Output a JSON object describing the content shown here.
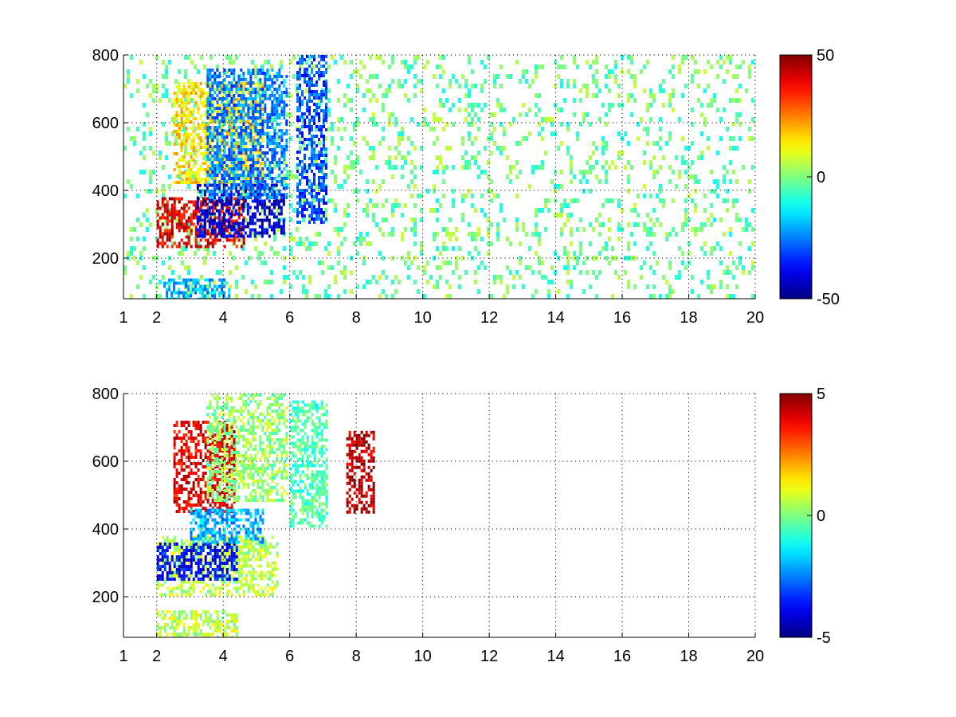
{
  "chart_data": [
    {
      "type": "heatmap",
      "title": "",
      "xlabel": "",
      "ylabel": "",
      "xlim": [
        1,
        20
      ],
      "ylim": [
        80,
        800
      ],
      "x_ticks": [
        1,
        2,
        4,
        6,
        8,
        10,
        12,
        14,
        16,
        18,
        20
      ],
      "y_ticks": [
        200,
        400,
        600,
        800
      ],
      "grid": true,
      "colorbar": {
        "colormap": "jet",
        "min": -50,
        "max": 50,
        "ticks": [
          50,
          0,
          -50
        ]
      },
      "features": [
        {
          "x": [
            2.0,
            4.6
          ],
          "y": [
            230,
            380
          ],
          "value": 40
        },
        {
          "x": [
            3.2,
            5.8
          ],
          "y": [
            260,
            420
          ],
          "value": -42
        },
        {
          "x": [
            2.5,
            5.2
          ],
          "y": [
            420,
            720
          ],
          "value": 15
        },
        {
          "x": [
            3.5,
            5.9
          ],
          "y": [
            380,
            760
          ],
          "value": -25
        },
        {
          "x": [
            6.2,
            7.1
          ],
          "y": [
            310,
            800
          ],
          "value": -30
        },
        {
          "x": [
            2.2,
            4.2
          ],
          "y": [
            80,
            140
          ],
          "value": -20
        }
      ],
      "sparse_fill": {
        "x": [
          1,
          20
        ],
        "y": [
          80,
          800
        ],
        "value_range": [
          -12,
          8
        ],
        "density": 0.18
      }
    },
    {
      "type": "heatmap",
      "title": "",
      "xlabel": "",
      "ylabel": "",
      "xlim": [
        1,
        20
      ],
      "ylim": [
        80,
        800
      ],
      "x_ticks": [
        1,
        2,
        4,
        6,
        8,
        10,
        12,
        14,
        16,
        18,
        20
      ],
      "y_ticks": [
        200,
        400,
        600,
        800
      ],
      "grid": true,
      "colorbar": {
        "colormap": "jet",
        "min": -5,
        "max": 5,
        "ticks": [
          5,
          0,
          -5
        ]
      },
      "features": [
        {
          "x": [
            2.0,
            5.6
          ],
          "y": [
            210,
            380
          ],
          "value": 0.6
        },
        {
          "x": [
            2.0,
            4.4
          ],
          "y": [
            250,
            360
          ],
          "value": -3.8
        },
        {
          "x": [
            2.5,
            4.3
          ],
          "y": [
            450,
            720
          ],
          "value": 4.0
        },
        {
          "x": [
            3.5,
            5.9
          ],
          "y": [
            480,
            800
          ],
          "value": 0.2
        },
        {
          "x": [
            3.0,
            5.2
          ],
          "y": [
            360,
            460
          ],
          "value": -2.0
        },
        {
          "x": [
            6.0,
            7.1
          ],
          "y": [
            410,
            780
          ],
          "value": -0.5
        },
        {
          "x": [
            2.0,
            4.4
          ],
          "y": [
            80,
            160
          ],
          "value": 0.6
        },
        {
          "x": [
            7.7,
            8.5
          ],
          "y": [
            450,
            690
          ],
          "value": 4.5
        }
      ]
    }
  ]
}
